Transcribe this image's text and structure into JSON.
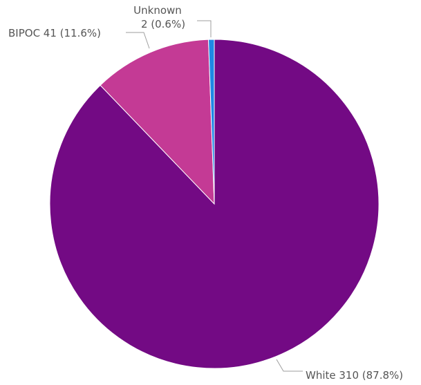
{
  "chart_data": {
    "type": "pie",
    "title": "",
    "slices": [
      {
        "label": "White",
        "value": 310,
        "percent": 87.8,
        "color": "#730a84",
        "text": "White 310 (87.8%)"
      },
      {
        "label": "BIPOC",
        "value": 41,
        "percent": 11.6,
        "color": "#c43a95",
        "text": "BIPOC 41 (11.6%)"
      },
      {
        "label": "Unknown",
        "value": 2,
        "percent": 0.6,
        "color": "#1e88e5",
        "text_lines": [
          "Unknown",
          "2 (0.6%)"
        ]
      }
    ],
    "start_angle_deg": 0,
    "direction": "clockwise",
    "legend": "none"
  }
}
